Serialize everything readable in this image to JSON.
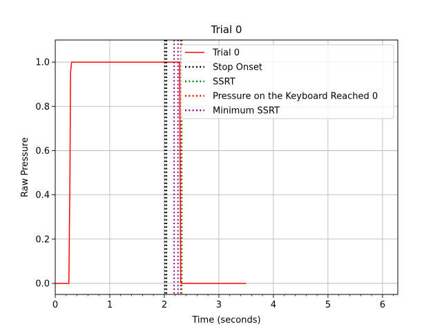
{
  "chart_data": {
    "type": "line",
    "title": "Trial 0",
    "xlabel": "Time (seconds)",
    "ylabel": "Raw Pressure",
    "xlim": [
      0,
      6.28
    ],
    "ylim": [
      -0.05,
      1.1
    ],
    "xticks": [
      0,
      1,
      2,
      3,
      4,
      5,
      6
    ],
    "xtick_labels": [
      "0",
      "1",
      "2",
      "3",
      "4",
      "5",
      "6"
    ],
    "yticks": [
      0.0,
      0.2,
      0.4,
      0.6,
      0.8,
      1.0
    ],
    "ytick_labels": [
      "0.0",
      "0.2",
      "0.4",
      "0.6",
      "0.8",
      "1.0"
    ],
    "grid": true,
    "legend_position": "top-right",
    "series": [
      {
        "name": "Trial 0",
        "color": "#ff0000",
        "style": "solid",
        "x": [
          0,
          0.25,
          0.27,
          0.28,
          0.3,
          2.28,
          2.29,
          2.3,
          2.31,
          3.5
        ],
        "y": [
          0,
          0,
          0.5,
          0.95,
          1.0,
          1.0,
          0.5,
          0.01,
          0,
          0
        ]
      }
    ],
    "vlines": [
      {
        "name": "Stop Onset",
        "x": 2.01,
        "color": "#000000",
        "style": "dotted"
      },
      {
        "name": "SSRT",
        "x": 2.32,
        "color": "#008000",
        "style": "dotted"
      },
      {
        "name": "Pressure on the Keyboard Reached 0",
        "x": 2.3,
        "color": "#ff0000",
        "style": "dotted"
      },
      {
        "name": "Minimum SSRT",
        "x": 2.18,
        "color": "#800080",
        "style": "dotted"
      }
    ],
    "extra_vlines": [
      {
        "x": 2.04,
        "color": "#000000"
      },
      {
        "x": 2.25,
        "color": "#800080"
      }
    ]
  }
}
